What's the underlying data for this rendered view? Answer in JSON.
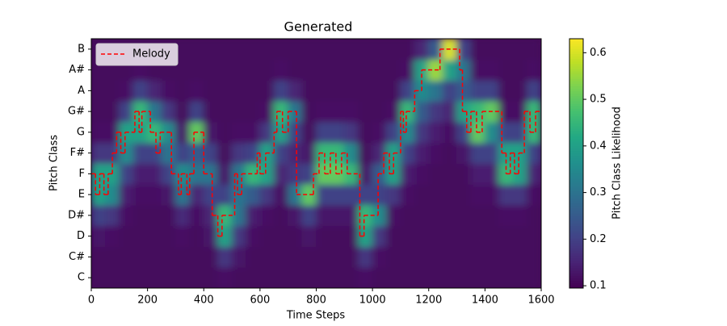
{
  "chart_data": {
    "type": "heatmap",
    "title": "Generated",
    "xlabel": "Time Steps",
    "ylabel": "Pitch Class",
    "categories": [
      "C",
      "C#",
      "D",
      "D#",
      "E",
      "F",
      "F#",
      "G",
      "G#",
      "A",
      "A#",
      "B"
    ],
    "xlim": [
      0,
      1600
    ],
    "xticks": [
      0,
      200,
      400,
      600,
      800,
      1000,
      1200,
      1400,
      1600
    ],
    "x_edges": [
      0,
      50,
      100,
      150,
      200,
      250,
      300,
      350,
      400,
      450,
      500,
      550,
      600,
      650,
      700,
      750,
      800,
      850,
      900,
      950,
      1000,
      1050,
      1100,
      1150,
      1200,
      1250,
      1300,
      1350,
      1400,
      1450,
      1500,
      1550,
      1600
    ],
    "z": [
      [
        0.11,
        0.11,
        0.13,
        0.2,
        0.4,
        0.4,
        0.18,
        0.12,
        0.11,
        0.11,
        0.11,
        0.11
      ],
      [
        0.11,
        0.11,
        0.12,
        0.18,
        0.35,
        0.4,
        0.18,
        0.12,
        0.11,
        0.11,
        0.11,
        0.11
      ],
      [
        0.11,
        0.11,
        0.11,
        0.12,
        0.14,
        0.2,
        0.35,
        0.4,
        0.2,
        0.12,
        0.11,
        0.11
      ],
      [
        0.11,
        0.11,
        0.11,
        0.11,
        0.12,
        0.14,
        0.2,
        0.4,
        0.45,
        0.2,
        0.12,
        0.11
      ],
      [
        0.11,
        0.11,
        0.11,
        0.11,
        0.12,
        0.14,
        0.2,
        0.45,
        0.3,
        0.15,
        0.11,
        0.11
      ],
      [
        0.11,
        0.11,
        0.11,
        0.11,
        0.13,
        0.2,
        0.3,
        0.35,
        0.18,
        0.12,
        0.11,
        0.11
      ],
      [
        0.11,
        0.11,
        0.12,
        0.16,
        0.3,
        0.35,
        0.2,
        0.13,
        0.11,
        0.11,
        0.11,
        0.11
      ],
      [
        0.11,
        0.11,
        0.11,
        0.12,
        0.15,
        0.3,
        0.25,
        0.5,
        0.2,
        0.12,
        0.11,
        0.11
      ],
      [
        0.11,
        0.11,
        0.13,
        0.15,
        0.2,
        0.3,
        0.2,
        0.13,
        0.11,
        0.11,
        0.11,
        0.11
      ],
      [
        0.12,
        0.18,
        0.4,
        0.45,
        0.2,
        0.13,
        0.11,
        0.11,
        0.11,
        0.11,
        0.11,
        0.11
      ],
      [
        0.11,
        0.13,
        0.18,
        0.3,
        0.3,
        0.3,
        0.18,
        0.12,
        0.11,
        0.11,
        0.11,
        0.11
      ],
      [
        0.11,
        0.11,
        0.12,
        0.14,
        0.25,
        0.45,
        0.2,
        0.12,
        0.11,
        0.11,
        0.11,
        0.11
      ],
      [
        0.11,
        0.11,
        0.11,
        0.12,
        0.18,
        0.4,
        0.4,
        0.18,
        0.12,
        0.11,
        0.11,
        0.11
      ],
      [
        0.11,
        0.11,
        0.11,
        0.11,
        0.12,
        0.15,
        0.2,
        0.4,
        0.45,
        0.2,
        0.12,
        0.11
      ],
      [
        0.11,
        0.11,
        0.11,
        0.13,
        0.3,
        0.18,
        0.15,
        0.2,
        0.3,
        0.15,
        0.11,
        0.11
      ],
      [
        0.11,
        0.11,
        0.13,
        0.2,
        0.5,
        0.2,
        0.13,
        0.11,
        0.11,
        0.11,
        0.11,
        0.11
      ],
      [
        0.11,
        0.11,
        0.11,
        0.13,
        0.2,
        0.5,
        0.45,
        0.2,
        0.12,
        0.11,
        0.11,
        0.11
      ],
      [
        0.11,
        0.11,
        0.11,
        0.13,
        0.2,
        0.5,
        0.45,
        0.2,
        0.12,
        0.11,
        0.11,
        0.11
      ],
      [
        0.11,
        0.11,
        0.11,
        0.13,
        0.2,
        0.45,
        0.35,
        0.18,
        0.12,
        0.11,
        0.11,
        0.11
      ],
      [
        0.12,
        0.18,
        0.4,
        0.45,
        0.2,
        0.13,
        0.11,
        0.11,
        0.11,
        0.11,
        0.11,
        0.11
      ],
      [
        0.11,
        0.12,
        0.18,
        0.35,
        0.2,
        0.25,
        0.15,
        0.12,
        0.11,
        0.11,
        0.11,
        0.11
      ],
      [
        0.11,
        0.11,
        0.11,
        0.12,
        0.18,
        0.4,
        0.4,
        0.2,
        0.12,
        0.11,
        0.11,
        0.11
      ],
      [
        0.11,
        0.11,
        0.11,
        0.11,
        0.12,
        0.14,
        0.2,
        0.35,
        0.45,
        0.2,
        0.12,
        0.11
      ],
      [
        0.11,
        0.11,
        0.11,
        0.11,
        0.11,
        0.12,
        0.14,
        0.18,
        0.25,
        0.35,
        0.4,
        0.15
      ],
      [
        0.11,
        0.11,
        0.11,
        0.11,
        0.11,
        0.11,
        0.12,
        0.14,
        0.18,
        0.3,
        0.55,
        0.25
      ],
      [
        0.11,
        0.11,
        0.11,
        0.11,
        0.11,
        0.11,
        0.11,
        0.12,
        0.15,
        0.2,
        0.4,
        0.6
      ],
      [
        0.11,
        0.11,
        0.11,
        0.11,
        0.11,
        0.11,
        0.13,
        0.2,
        0.4,
        0.25,
        0.3,
        0.2
      ],
      [
        0.11,
        0.11,
        0.11,
        0.11,
        0.12,
        0.14,
        0.2,
        0.5,
        0.45,
        0.2,
        0.12,
        0.11
      ],
      [
        0.11,
        0.11,
        0.11,
        0.11,
        0.12,
        0.14,
        0.2,
        0.35,
        0.5,
        0.2,
        0.12,
        0.11
      ],
      [
        0.11,
        0.11,
        0.11,
        0.12,
        0.18,
        0.45,
        0.4,
        0.2,
        0.12,
        0.11,
        0.11,
        0.11
      ],
      [
        0.11,
        0.11,
        0.11,
        0.12,
        0.18,
        0.4,
        0.4,
        0.2,
        0.12,
        0.11,
        0.11,
        0.11
      ],
      [
        0.11,
        0.11,
        0.11,
        0.11,
        0.12,
        0.15,
        0.2,
        0.45,
        0.45,
        0.2,
        0.12,
        0.11
      ]
    ],
    "colormap": "viridis",
    "clim": [
      0.095,
      0.63
    ],
    "colorbar_label": "Pitch Class Likelihood",
    "colorbar_ticks": [
      0.1,
      0.2,
      0.3,
      0.4,
      0.5,
      0.6
    ],
    "legend": "upper left",
    "series": [
      {
        "name": "Melody",
        "color": "#ff0000",
        "x": [
          0,
          15,
          30,
          45,
          60,
          75,
          90,
          105,
          120,
          155,
          170,
          180,
          210,
          230,
          245,
          285,
          310,
          320,
          340,
          350,
          365,
          400,
          430,
          450,
          465,
          510,
          520,
          535,
          590,
          600,
          620,
          650,
          660,
          680,
          700,
          730,
          790,
          810,
          830,
          850,
          870,
          890,
          910,
          955,
          970,
          1020,
          1040,
          1060,
          1075,
          1100,
          1110,
          1120,
          1150,
          1175,
          1240,
          1310,
          1320,
          1335,
          1350,
          1370,
          1390,
          1460,
          1475,
          1490,
          1505,
          1520,
          1540,
          1560,
          1580
        ],
        "values": [
          5,
          4,
          5,
          4,
          5,
          6,
          7,
          6,
          7,
          8,
          7,
          8,
          7,
          6,
          7,
          5,
          4,
          5,
          4,
          5,
          7,
          5,
          3,
          2,
          3,
          5,
          4,
          5,
          6,
          5,
          6,
          7,
          8,
          7,
          8,
          4,
          5,
          6,
          5,
          6,
          5,
          6,
          5,
          2,
          3,
          5,
          6,
          5,
          6,
          8,
          7,
          8,
          9,
          10,
          11,
          10,
          8,
          7,
          8,
          7,
          8,
          6,
          5,
          6,
          5,
          6,
          8,
          7,
          8
        ]
      }
    ]
  }
}
